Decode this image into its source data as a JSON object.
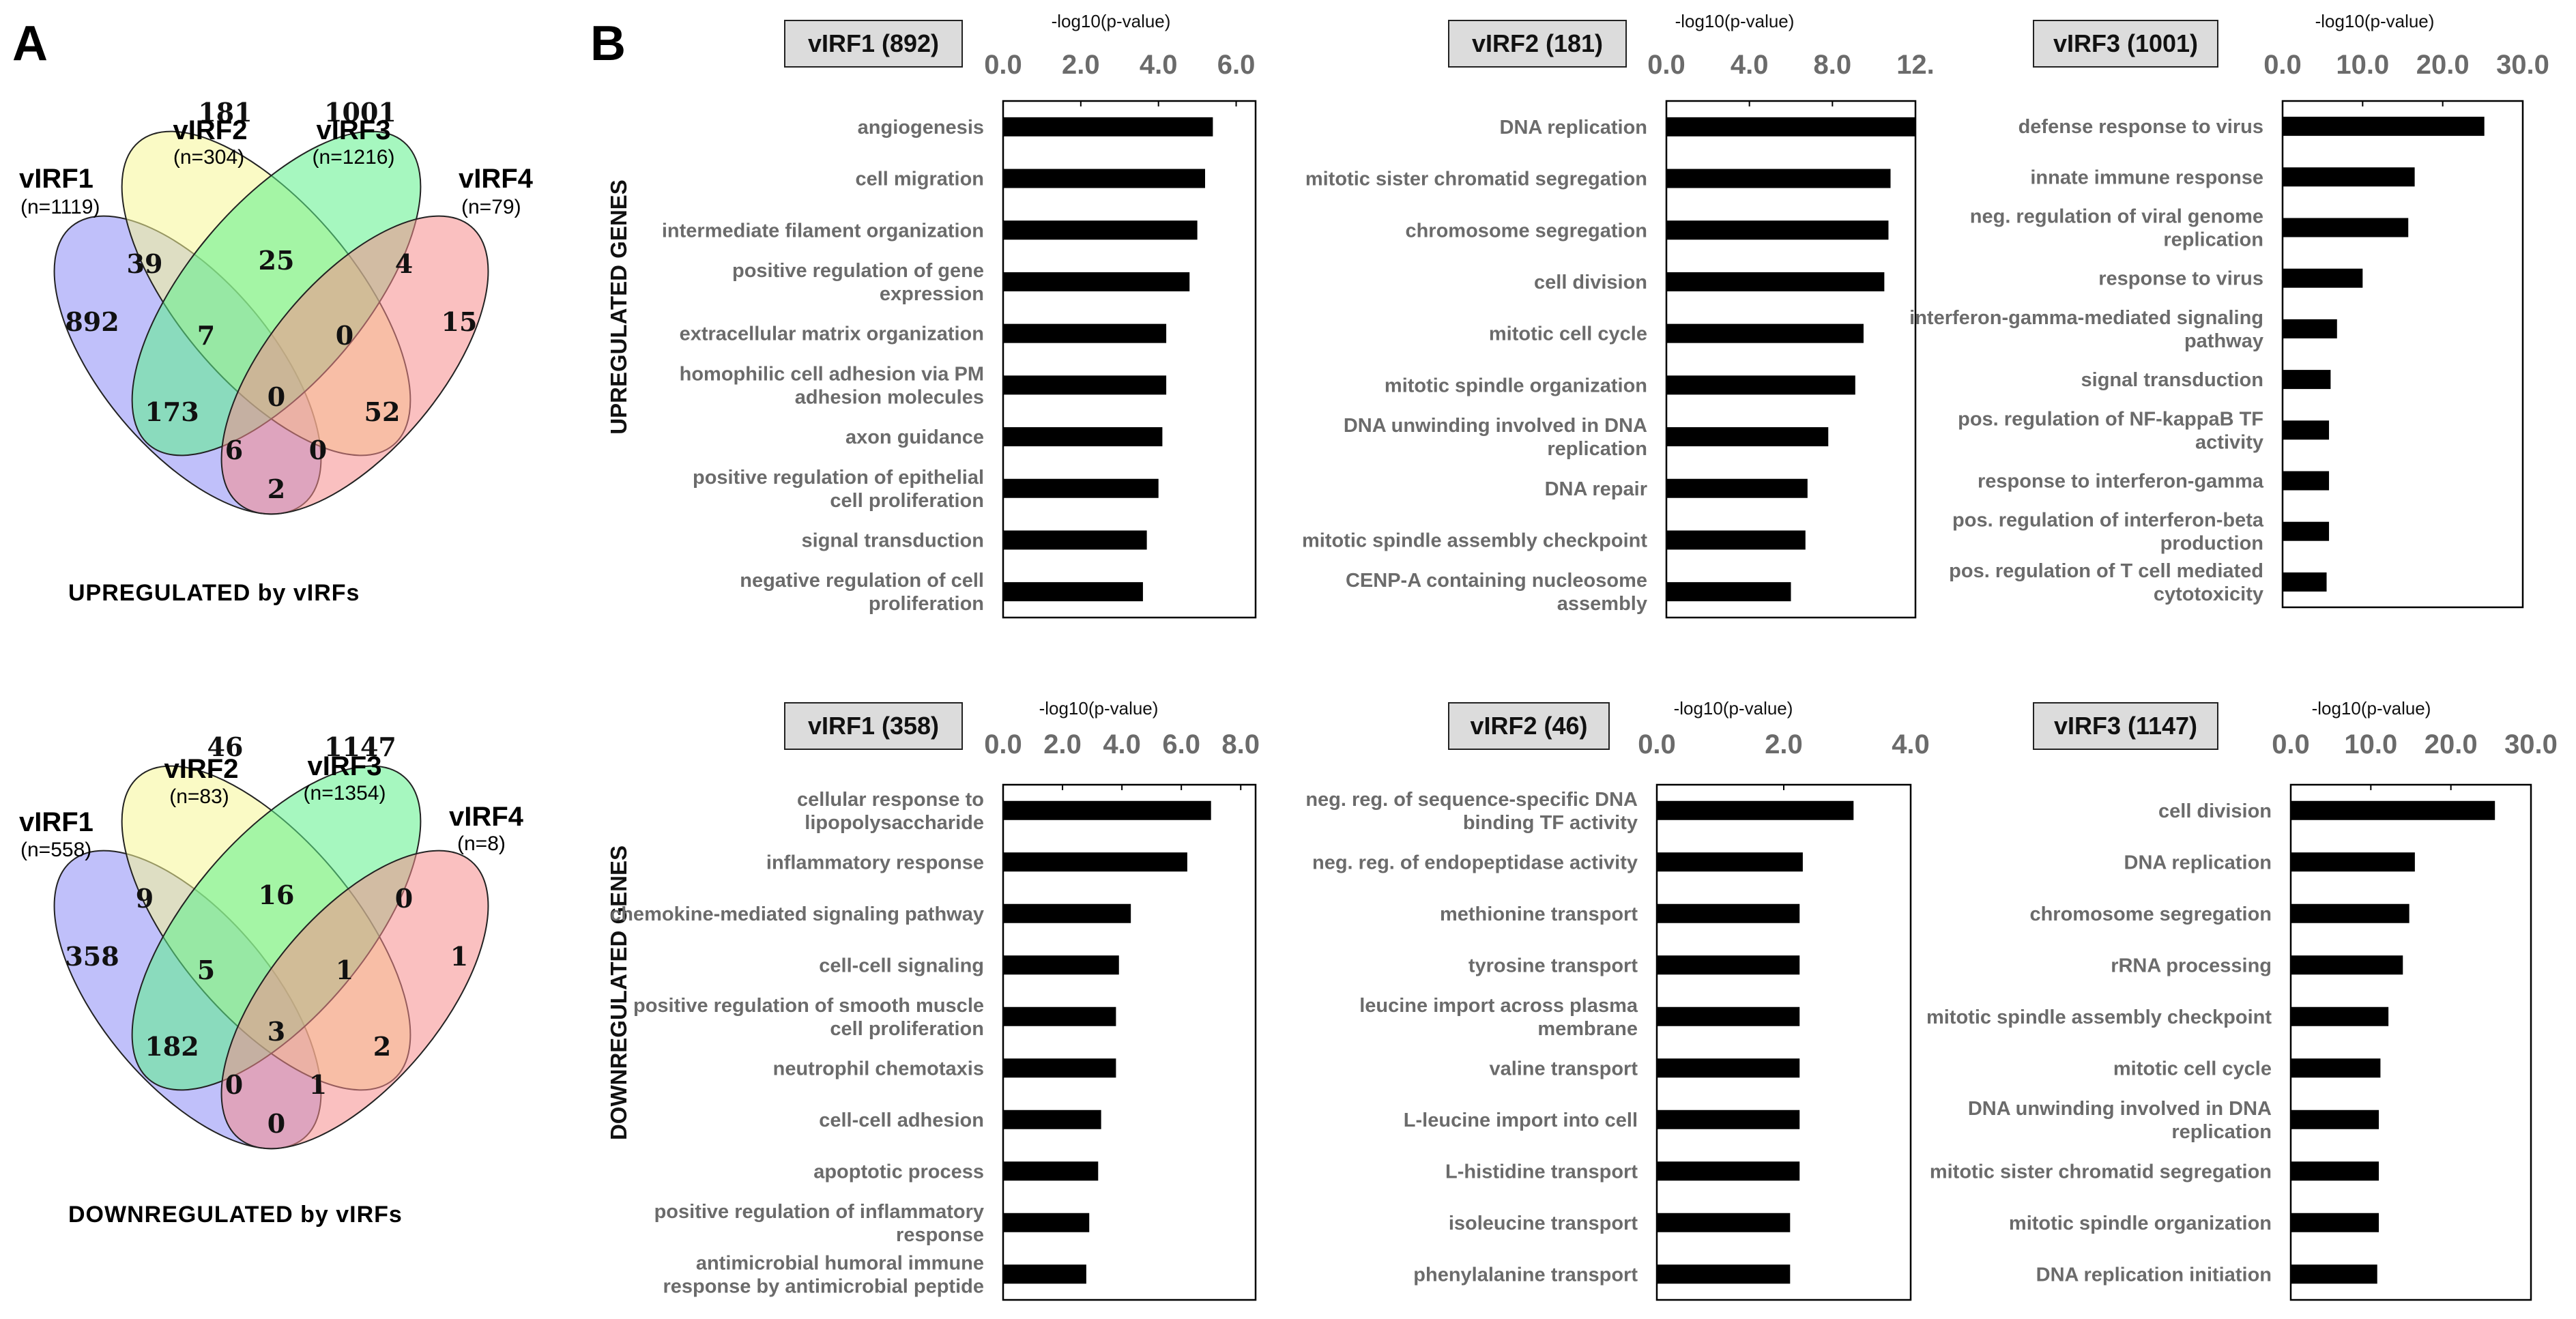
{
  "panels": {
    "a": "A",
    "b": "B"
  },
  "venns": [
    {
      "caption": "UPREGULATED by vIRFs",
      "sets": [
        {
          "name": "vIRF1",
          "n": "(n=1119)"
        },
        {
          "name": "vIRF2",
          "n": "(n=304)"
        },
        {
          "name": "vIRF3",
          "n": "(n=1216)"
        },
        {
          "name": "vIRF4",
          "n": "(n=79)"
        }
      ],
      "regions": {
        "a": "892",
        "b": "181",
        "c": "1001",
        "d": "15",
        "ab": "39",
        "bc": "25",
        "cd": "4",
        "abc": "7",
        "bcd": "0",
        "abcd": "0",
        "ac": "173",
        "bd": "52",
        "acd": "6",
        "abd": "0",
        "ad": "2"
      }
    },
    {
      "caption": "DOWNREGULATED by vIRFs",
      "sets": [
        {
          "name": "vIRF1",
          "n": "(n=558)"
        },
        {
          "name": "vIRF2",
          "n": "(n=83)"
        },
        {
          "name": "vIRF3",
          "n": "(n=1354)"
        },
        {
          "name": "vIRF4",
          "n": "(n=8)"
        }
      ],
      "regions": {
        "a": "358",
        "b": "46",
        "c": "1147",
        "d": "1",
        "ab": "9",
        "bc": "16",
        "cd": "0",
        "abc": "5",
        "bcd": "1",
        "abcd": "3",
        "ac": "182",
        "bd": "2",
        "acd": "0",
        "abd": "1",
        "ad": "0"
      }
    }
  ],
  "venn_colors": [
    "#8c8cf5",
    "#f5f596",
    "#5cf08a",
    "#f58c8c"
  ],
  "row_labels": [
    "UPREGULATED GENES",
    "DOWNREGULATED GENES"
  ],
  "chart_data": [
    {
      "type": "bar",
      "orientation": "horizontal",
      "title": "vIRF1 (892)",
      "xlabel": "-log10(p-value)",
      "xlim": [
        0,
        6.5
      ],
      "xticks": [
        "0.0",
        "2.0",
        "4.0",
        "6.0"
      ],
      "xtick_values": [
        0,
        2,
        4,
        6
      ],
      "categories": [
        "angiogenesis",
        "cell migration",
        "intermediate filament organization",
        "positive regulation of gene expression",
        "extracellular matrix organization",
        "homophilic cell adhesion via PM adhesion molecules",
        "axon guidance",
        "positive regulation of epithelial cell proliferation",
        "signal transduction",
        "negative regulation of cell proliferation"
      ],
      "values": [
        5.4,
        5.2,
        5.0,
        4.8,
        4.2,
        4.2,
        4.1,
        4.0,
        3.7,
        3.6
      ]
    },
    {
      "type": "bar",
      "orientation": "horizontal",
      "title": "vIRF2 (181)",
      "xlabel": "-log10(p-value)",
      "xlim": [
        0,
        12
      ],
      "xticks": [
        "0.0",
        "4.0",
        "8.0",
        "12."
      ],
      "xtick_values": [
        0,
        4,
        8,
        12
      ],
      "categories": [
        "DNA replication",
        "mitotic sister chromatid segregation",
        "chromosome segregation",
        "cell division",
        "mitotic cell cycle",
        "mitotic spindle organization",
        "DNA unwinding involved in DNA replication",
        "DNA repair",
        "mitotic spindle assembly checkpoint",
        "CENP-A containing nucleosome assembly"
      ],
      "values": [
        12.0,
        10.8,
        10.7,
        10.5,
        9.5,
        9.1,
        7.8,
        6.8,
        6.7,
        6.0
      ]
    },
    {
      "type": "bar",
      "orientation": "horizontal",
      "title": "vIRF3 (1001)",
      "xlabel": "-log10(p-value)",
      "xlim": [
        0,
        30
      ],
      "xticks": [
        "0.0",
        "10.0",
        "20.0",
        "30.0"
      ],
      "xtick_values": [
        0,
        10,
        20,
        30
      ],
      "categories": [
        "defense response to virus",
        "innate immune response",
        "neg. regulation of viral genome replication",
        "response to virus",
        "interferon-gamma-mediated signaling pathway",
        "signal transduction",
        "pos. regulation of NF-kappaB TF activity",
        "response to interferon-gamma",
        "pos. regulation of interferon-beta production",
        "pos. regulation of T cell mediated cytotoxicity"
      ],
      "values": [
        25.2,
        16.5,
        15.7,
        10.0,
        6.8,
        6.0,
        5.8,
        5.8,
        5.8,
        5.5
      ]
    },
    {
      "type": "bar",
      "orientation": "horizontal",
      "title": "vIRF1 (358)",
      "xlabel": "-log10(p-value)",
      "xlim": [
        0,
        8.5
      ],
      "xticks": [
        "0.0",
        "2.0",
        "4.0",
        "6.0",
        "8.0"
      ],
      "xtick_values": [
        0,
        2,
        4,
        6,
        8
      ],
      "categories": [
        "cellular response to lipopolysaccharide",
        "inflammatory response",
        "chemokine-mediated signaling pathway",
        "cell-cell signaling",
        "positive regulation of smooth muscle cell proliferation",
        "neutrophil chemotaxis",
        "cell-cell adhesion",
        "apoptotic process",
        "positive regulation of inflammatory response",
        "antimicrobial humoral immune response  by antimicrobial peptide"
      ],
      "values": [
        7.0,
        6.2,
        4.3,
        3.9,
        3.8,
        3.8,
        3.3,
        3.2,
        2.9,
        2.8
      ]
    },
    {
      "type": "bar",
      "orientation": "horizontal",
      "title": "vIRF2 (46)",
      "xlabel": "-log10(p-value)",
      "xlim": [
        0,
        4
      ],
      "xticks": [
        "0.0",
        "2.0",
        "4.0"
      ],
      "xtick_values": [
        0,
        2,
        4
      ],
      "categories": [
        "neg. reg. of sequence-specific DNA binding TF activity",
        "neg. reg. of endopeptidase activity",
        "methionine transport",
        "tyrosine transport",
        "leucine import across plasma membrane",
        "valine transport",
        "L-leucine import into cell",
        "L-histidine transport",
        "isoleucine transport",
        "phenylalanine transport"
      ],
      "values": [
        3.1,
        2.3,
        2.25,
        2.25,
        2.25,
        2.25,
        2.25,
        2.25,
        2.1,
        2.1
      ]
    },
    {
      "type": "bar",
      "orientation": "horizontal",
      "title": "vIRF3 (1147)",
      "xlabel": "-log10(p-value)",
      "xlim": [
        0,
        30
      ],
      "xticks": [
        "0.0",
        "10.0",
        "20.0",
        "30.0"
      ],
      "xtick_values": [
        0,
        10,
        20,
        30
      ],
      "categories": [
        "cell division",
        "DNA replication",
        "chromosome segregation",
        "rRNA processing",
        "mitotic spindle assembly checkpoint",
        "mitotic cell cycle",
        "DNA unwinding involved in DNA replication",
        "mitotic sister chromatid segregation",
        "mitotic spindle organization",
        "DNA replication initiation"
      ],
      "values": [
        25.5,
        15.5,
        14.8,
        14.0,
        12.2,
        11.2,
        11.0,
        11.0,
        11.0,
        10.8
      ]
    }
  ]
}
